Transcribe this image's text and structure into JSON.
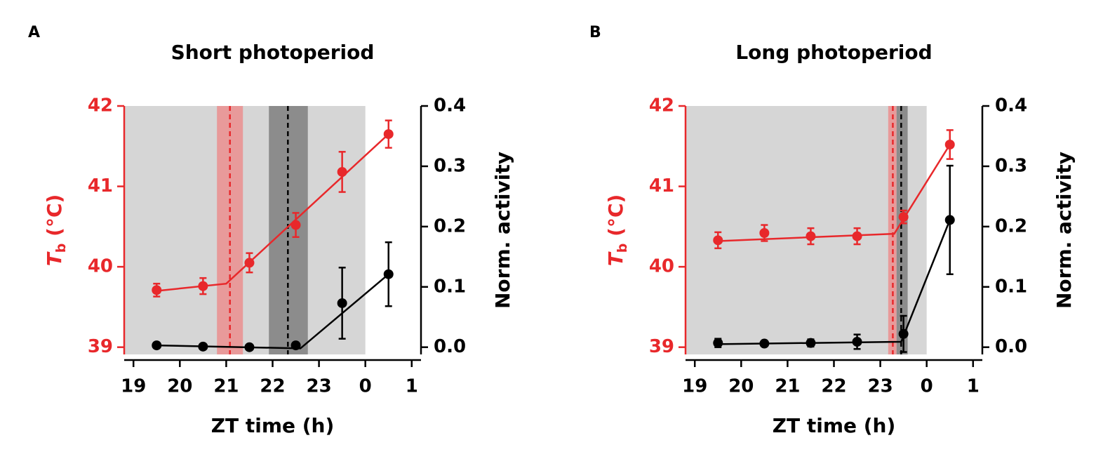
{
  "chart_data": [
    {
      "type": "line",
      "panel": "A",
      "title": "Short photoperiod",
      "xlabel": "ZT time (h)",
      "ylabel": [
        "T",
        "b",
        " (°C)"
      ],
      "y2label": "Norm. activity",
      "xlim": [
        18.8,
        25.2
      ],
      "xticks": [
        19,
        20,
        21,
        22,
        23,
        {
          "value": 24,
          "label": "0"
        },
        {
          "value": 25,
          "label": "1"
        }
      ],
      "ylim": [
        38.91,
        42
      ],
      "yticks": [
        39,
        40,
        41,
        42
      ],
      "y2lim": [
        -0.012,
        0.4
      ],
      "y2ticks": [
        {
          "value": 0,
          "label": "0.0"
        },
        0.1,
        0.2,
        0.3,
        0.4
      ],
      "y_color": "#e8282b",
      "y2_color": "#000000",
      "night": {
        "range": [
          18.8,
          24
        ],
        "color": "#d6d6d6"
      },
      "onsets": [
        {
          "x": 21.08,
          "range": [
            20.8,
            21.36
          ],
          "color": "#e8282b",
          "band_color": "#e89a9a"
        },
        {
          "x": 22.33,
          "range": [
            21.92,
            22.76
          ],
          "color": "#000000",
          "band_color": "#8c8c8c"
        }
      ],
      "series": [
        {
          "color": "#e8282b",
          "axis": "y",
          "x": [
            19.5,
            20.5,
            21.5,
            22.5,
            23.5,
            24.5
          ],
          "values": [
            39.71,
            39.76,
            40.05,
            40.52,
            41.18,
            41.65
          ],
          "errors": [
            0.08,
            0.1,
            0.12,
            0.15,
            0.25,
            0.17
          ],
          "fit_x": [
            19.5,
            21.0,
            24.5
          ],
          "fit_values": [
            39.7,
            39.79,
            41.65
          ]
        },
        {
          "color": "#000000",
          "axis": "y2",
          "x": [
            19.5,
            20.5,
            21.5,
            22.5,
            23.5,
            24.5
          ],
          "values": [
            0.003,
            0.001,
            0.0,
            0.003,
            0.073,
            0.121
          ],
          "errors": [
            0.002,
            0.002,
            0.002,
            0.003,
            0.059,
            0.053
          ],
          "fit_x": [
            19.5,
            22.6,
            24.5
          ],
          "fit_values": [
            0.003,
            -0.002,
            0.121
          ]
        }
      ]
    },
    {
      "type": "line",
      "panel": "B",
      "title": "Long photoperiod",
      "xlabel": "ZT time (h)",
      "ylabel": [
        "T",
        "b",
        " (°C)"
      ],
      "y2label": "Norm. activity",
      "xlim": [
        18.8,
        25.2
      ],
      "xticks": [
        19,
        20,
        21,
        22,
        23,
        {
          "value": 24,
          "label": "0"
        },
        {
          "value": 25,
          "label": "1"
        }
      ],
      "ylim": [
        38.91,
        42
      ],
      "yticks": [
        39,
        40,
        41,
        42
      ],
      "y2lim": [
        -0.012,
        0.4
      ],
      "y2ticks": [
        {
          "value": 0,
          "label": "0.0"
        },
        0.1,
        0.2,
        0.3,
        0.4
      ],
      "y_color": "#e8282b",
      "y2_color": "#000000",
      "night": {
        "range": [
          18.8,
          24
        ],
        "color": "#d6d6d6"
      },
      "onsets": [
        {
          "x": 23.27,
          "range": [
            23.17,
            23.35
          ],
          "color": "#e8282b",
          "band_color": "#e89a9a"
        },
        {
          "x": 23.45,
          "range": [
            23.35,
            23.59
          ],
          "color": "#000000",
          "band_color": "#8c8c8c"
        }
      ],
      "series": [
        {
          "color": "#e8282b",
          "axis": "y",
          "x": [
            19.5,
            20.5,
            21.5,
            22.5,
            23.5,
            24.5
          ],
          "values": [
            40.33,
            40.42,
            40.38,
            40.38,
            40.62,
            41.52
          ],
          "errors": [
            0.1,
            0.1,
            0.1,
            0.1,
            0.08,
            0.18
          ],
          "fit_x": [
            19.5,
            23.3,
            24.5
          ],
          "fit_values": [
            40.32,
            40.41,
            41.52
          ]
        },
        {
          "color": "#000000",
          "axis": "y2",
          "x": [
            19.5,
            20.5,
            21.5,
            22.5,
            23.5,
            24.5
          ],
          "values": [
            0.007,
            0.006,
            0.007,
            0.009,
            0.022,
            0.211
          ],
          "errors": [
            0.007,
            0.002,
            0.006,
            0.012,
            0.03,
            0.09
          ],
          "fit_x": [
            19.5,
            23.45,
            24.5
          ],
          "fit_values": [
            0.005,
            0.009,
            0.211
          ]
        }
      ]
    }
  ]
}
